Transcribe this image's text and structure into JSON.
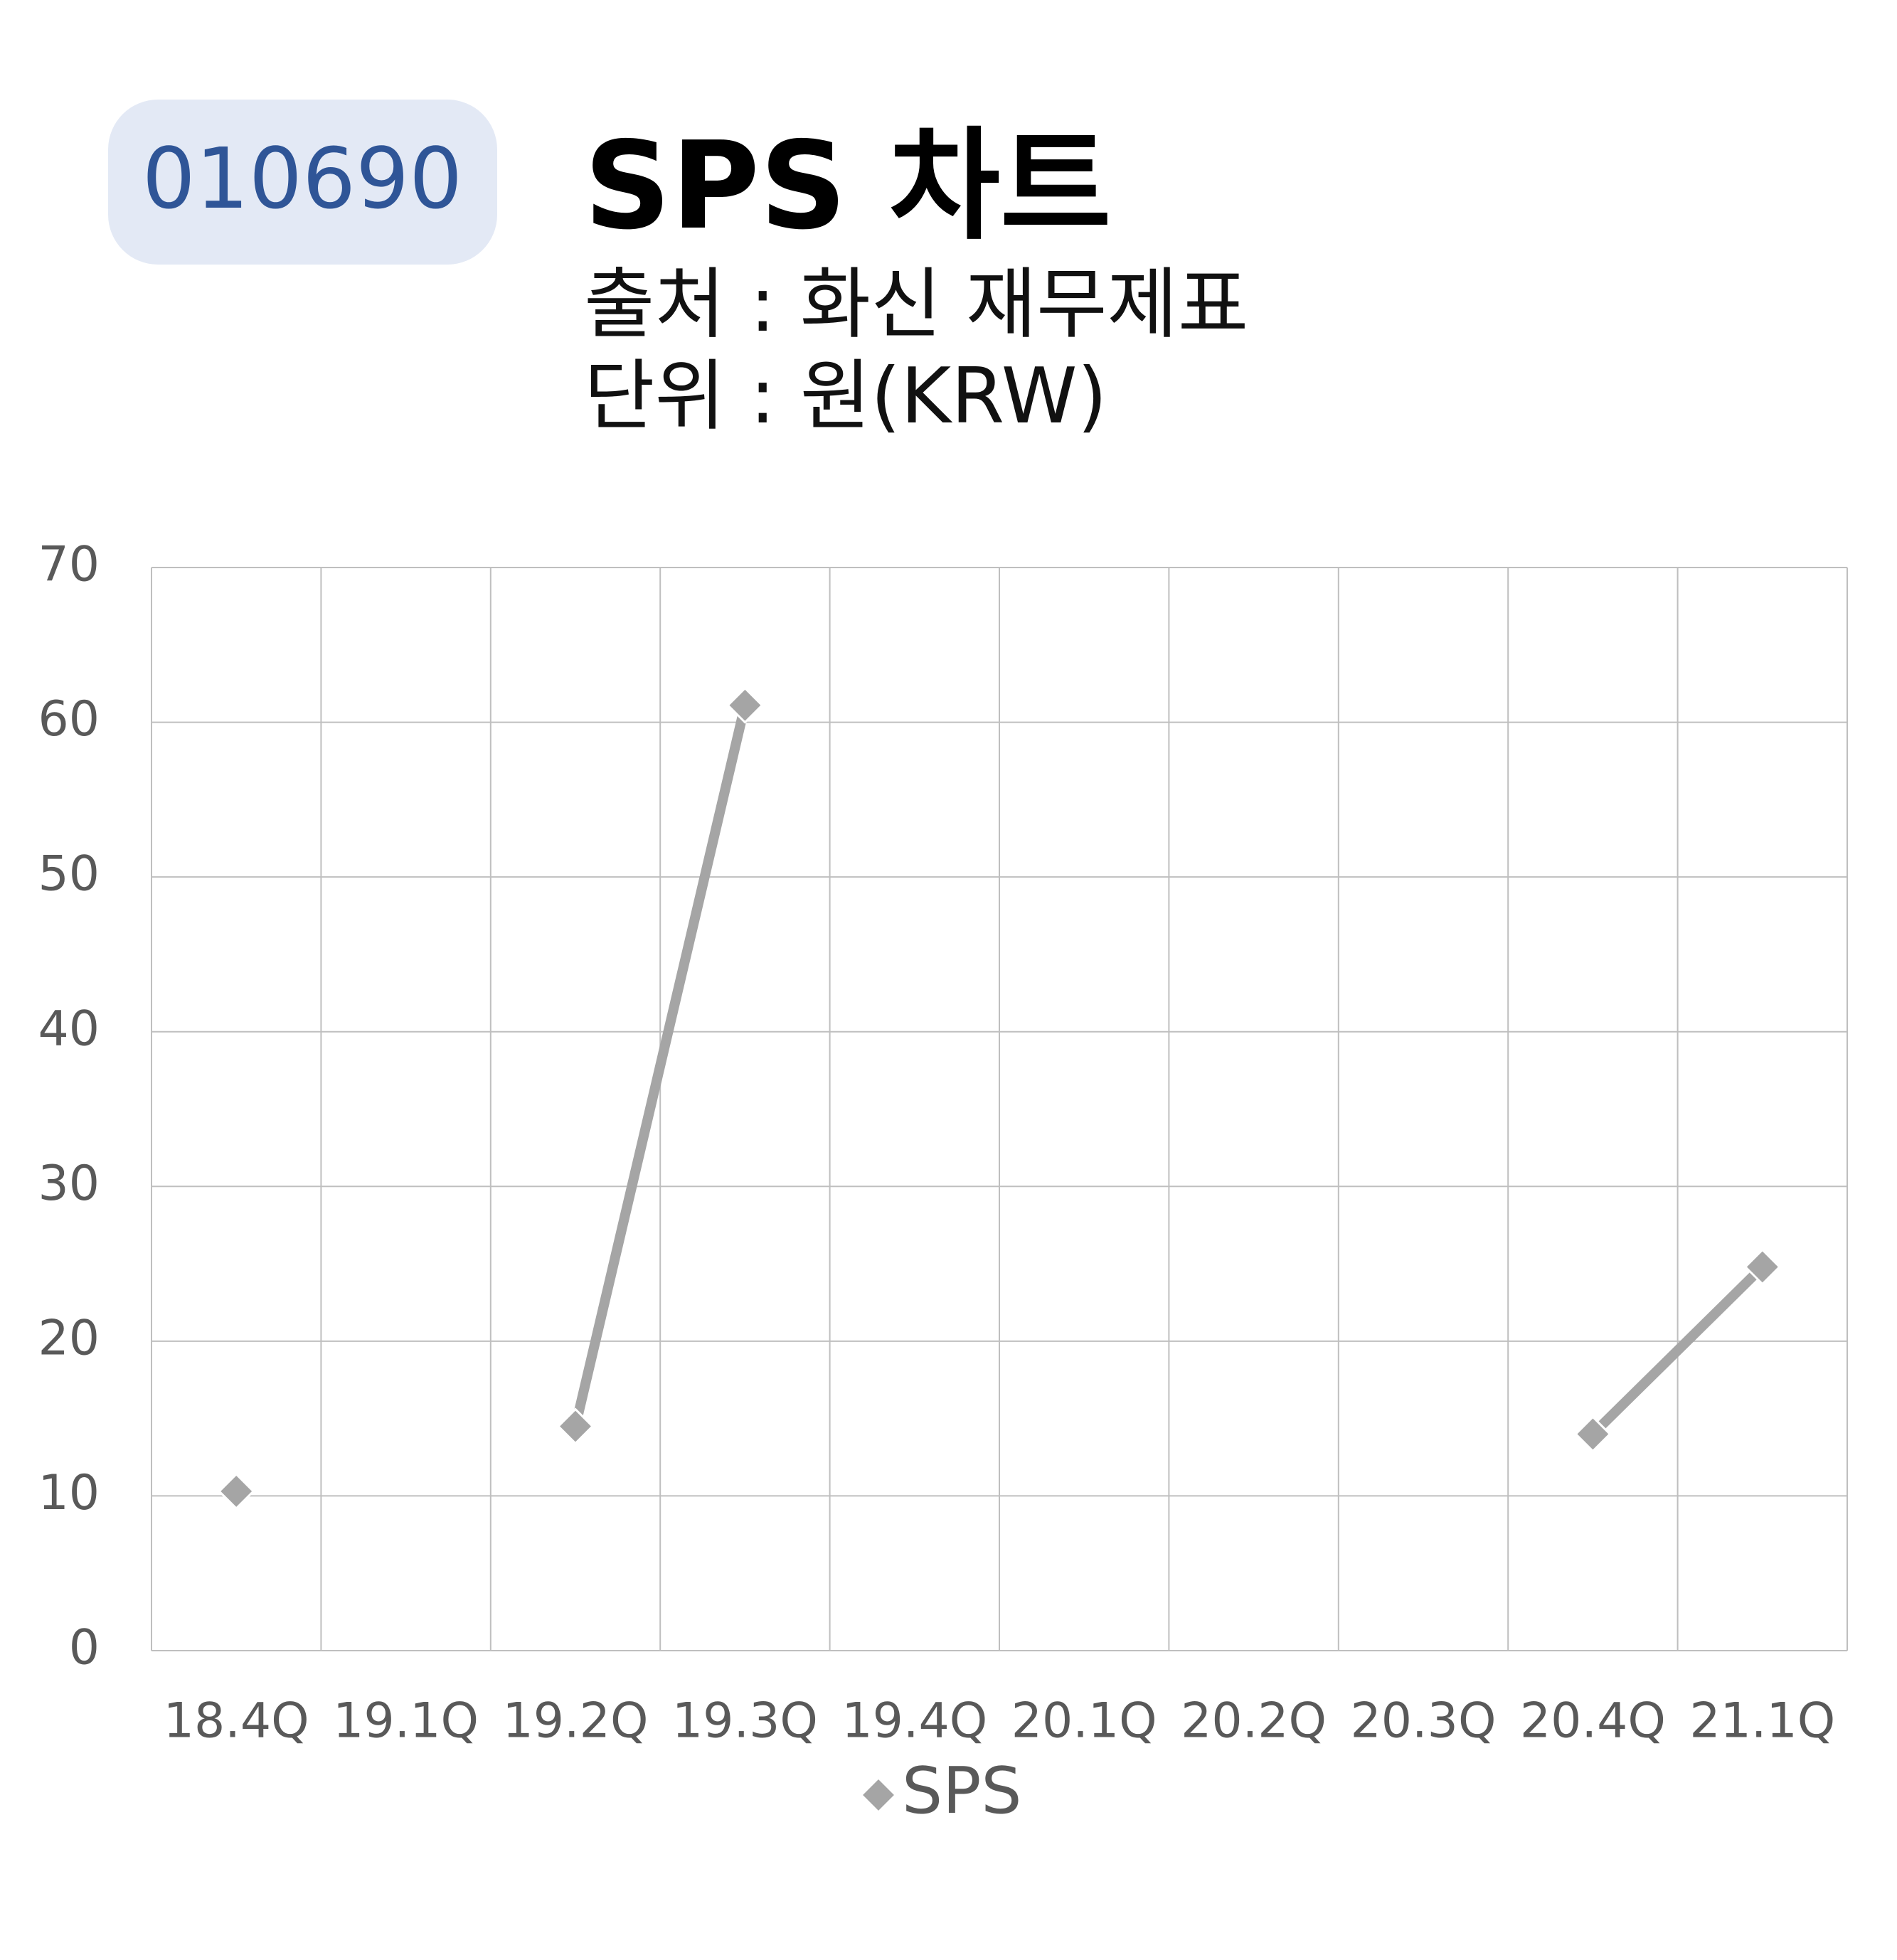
{
  "code": "010690",
  "chart_data": {
    "type": "line",
    "title": "SPS 차트",
    "subtitle": [
      "출처 : 화신 재무제표",
      "단위 : 원(KRW)"
    ],
    "categories": [
      "18.4Q",
      "19.1Q",
      "19.2Q",
      "19.3Q",
      "19.4Q",
      "20.1Q",
      "20.2Q",
      "20.3Q",
      "20.4Q",
      "21.1Q"
    ],
    "series": [
      {
        "name": "SPS",
        "color": "#a5a5a5",
        "values": [
          10.3,
          null,
          14.5,
          61.1,
          null,
          null,
          null,
          null,
          14,
          24.8
        ]
      }
    ],
    "ylim": [
      0,
      70
    ],
    "yticks": [
      0,
      10,
      20,
      30,
      40,
      50,
      60,
      70
    ],
    "grid": true,
    "legend": "bottom"
  }
}
